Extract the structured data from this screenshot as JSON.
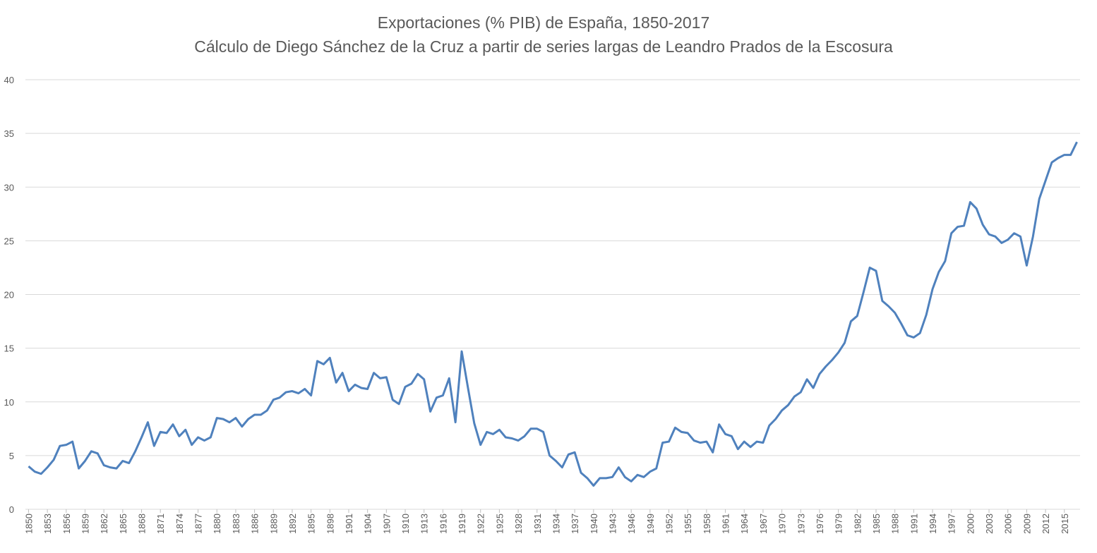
{
  "chart_data": {
    "type": "line",
    "title": "Exportaciones (% PIB) de España, 1850-2017",
    "subtitle": "Cálculo de Diego Sánchez de la Cruz a partir de series largas de Leandro Prados de la Escosura",
    "x": [
      1850,
      1851,
      1852,
      1853,
      1854,
      1855,
      1856,
      1857,
      1858,
      1859,
      1860,
      1861,
      1862,
      1863,
      1864,
      1865,
      1866,
      1867,
      1868,
      1869,
      1870,
      1871,
      1872,
      1873,
      1874,
      1875,
      1876,
      1877,
      1878,
      1879,
      1880,
      1881,
      1882,
      1883,
      1884,
      1885,
      1886,
      1887,
      1888,
      1889,
      1890,
      1891,
      1892,
      1893,
      1894,
      1895,
      1896,
      1897,
      1898,
      1899,
      1900,
      1901,
      1902,
      1903,
      1904,
      1905,
      1906,
      1907,
      1908,
      1909,
      1910,
      1911,
      1912,
      1913,
      1914,
      1915,
      1916,
      1917,
      1918,
      1919,
      1920,
      1921,
      1922,
      1923,
      1924,
      1925,
      1926,
      1927,
      1928,
      1929,
      1930,
      1931,
      1932,
      1933,
      1934,
      1935,
      1936,
      1937,
      1938,
      1939,
      1940,
      1941,
      1942,
      1943,
      1944,
      1945,
      1946,
      1947,
      1948,
      1949,
      1950,
      1951,
      1952,
      1953,
      1954,
      1955,
      1956,
      1957,
      1958,
      1959,
      1960,
      1961,
      1962,
      1963,
      1964,
      1965,
      1966,
      1967,
      1968,
      1969,
      1970,
      1971,
      1972,
      1973,
      1974,
      1975,
      1976,
      1977,
      1978,
      1979,
      1980,
      1981,
      1982,
      1983,
      1984,
      1985,
      1986,
      1987,
      1988,
      1989,
      1990,
      1991,
      1992,
      1993,
      1994,
      1995,
      1996,
      1997,
      1998,
      1999,
      2000,
      2001,
      2002,
      2003,
      2004,
      2005,
      2006,
      2007,
      2008,
      2009,
      2010,
      2011,
      2012,
      2013,
      2014,
      2015,
      2016,
      2017
    ],
    "values": [
      4.0,
      3.5,
      3.3,
      3.9,
      4.6,
      5.9,
      6.0,
      6.3,
      3.8,
      4.5,
      5.4,
      5.2,
      4.1,
      3.9,
      3.8,
      4.5,
      4.3,
      5.4,
      6.7,
      8.1,
      5.9,
      7.2,
      7.1,
      7.9,
      6.8,
      7.4,
      6.0,
      6.7,
      6.4,
      6.7,
      8.5,
      8.4,
      8.1,
      8.5,
      7.7,
      8.4,
      8.8,
      8.8,
      9.2,
      10.2,
      10.4,
      10.9,
      11.0,
      10.8,
      11.2,
      10.6,
      13.8,
      13.5,
      14.1,
      11.8,
      12.7,
      11.0,
      11.6,
      11.3,
      11.2,
      12.7,
      12.2,
      12.3,
      10.2,
      9.8,
      11.4,
      11.7,
      12.6,
      12.1,
      9.1,
      10.4,
      10.6,
      12.2,
      8.1,
      14.7,
      11.3,
      8.0,
      6.0,
      7.2,
      7.0,
      7.4,
      6.7,
      6.6,
      6.4,
      6.8,
      7.5,
      7.5,
      7.2,
      5.0,
      4.5,
      3.9,
      5.1,
      5.3,
      3.4,
      2.9,
      2.2,
      2.9,
      2.9,
      3.0,
      3.9,
      3.0,
      2.6,
      3.2,
      3.0,
      3.5,
      3.8,
      6.2,
      6.3,
      7.6,
      7.2,
      7.1,
      6.4,
      6.2,
      6.3,
      5.3,
      7.9,
      7.0,
      6.8,
      5.6,
      6.3,
      5.8,
      6.3,
      6.2,
      7.8,
      8.4,
      9.2,
      9.7,
      10.5,
      10.9,
      12.1,
      11.3,
      12.6,
      13.3,
      13.9,
      14.6,
      15.5,
      17.5,
      18.0,
      20.2,
      22.5,
      22.2,
      19.4,
      18.9,
      18.3,
      17.3,
      16.2,
      16.0,
      16.4,
      18.1,
      20.5,
      22.1,
      23.1,
      25.7,
      26.3,
      26.4,
      28.6,
      28.0,
      26.5,
      25.6,
      25.4,
      24.8,
      25.1,
      25.7,
      25.4,
      22.7,
      25.4,
      28.9,
      30.6,
      32.3,
      32.7,
      33.0,
      33.0,
      34.2
    ],
    "color": "#4f81bd",
    "xlim": [
      1849.5,
      2017.5
    ],
    "xticks": [
      1850,
      1853,
      1856,
      1859,
      1862,
      1865,
      1868,
      1871,
      1874,
      1877,
      1880,
      1883,
      1886,
      1889,
      1892,
      1895,
      1898,
      1901,
      1904,
      1907,
      1910,
      1913,
      1916,
      1919,
      1922,
      1925,
      1928,
      1931,
      1934,
      1937,
      1940,
      1943,
      1946,
      1949,
      1952,
      1955,
      1958,
      1961,
      1964,
      1967,
      1970,
      1973,
      1976,
      1979,
      1982,
      1985,
      1988,
      1991,
      1994,
      1997,
      2000,
      2003,
      2006,
      2009,
      2012,
      2015
    ],
    "ylim": [
      0,
      40
    ],
    "yticks": [
      0,
      5,
      10,
      15,
      20,
      25,
      30,
      35,
      40
    ],
    "grid": true
  }
}
